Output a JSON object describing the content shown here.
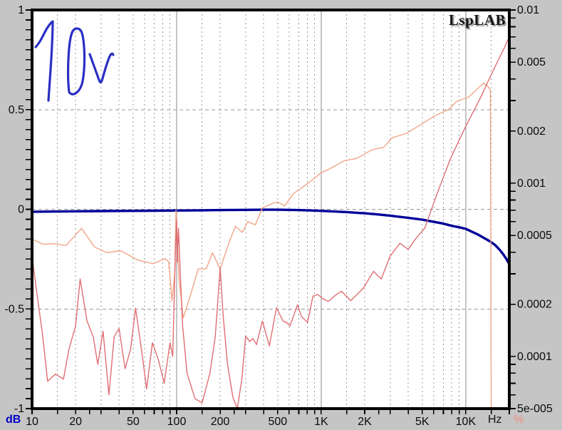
{
  "app": {
    "background_color": "#c5c5c5"
  },
  "chart_data": {
    "type": "line",
    "title": "LspLAB",
    "plot_bg": "#ffffff",
    "border_color": "#000000",
    "grid": {
      "dash_color": "#989898",
      "solid_color": "#8a8a8a",
      "h_values": [
        0.5,
        0,
        -0.5
      ],
      "v_dashed_multipliers": [
        1.5,
        2,
        3,
        4,
        5,
        6,
        7,
        8,
        9
      ],
      "v_solid": [
        100,
        1000,
        10000
      ]
    },
    "x_axis": {
      "scale": "log",
      "min": 10,
      "max": 20000,
      "unit": "Hz",
      "unit_color": "#111111",
      "tick_multipliers": [
        1,
        1.5,
        2,
        2.5,
        3,
        4,
        5,
        6,
        7,
        8,
        9
      ],
      "tick_labels": [
        {
          "f": 10,
          "label": "10"
        },
        {
          "f": 20,
          "label": "20"
        },
        {
          "f": 50,
          "label": "50"
        },
        {
          "f": 100,
          "label": "100"
        },
        {
          "f": 200,
          "label": "200"
        },
        {
          "f": 500,
          "label": "500"
        },
        {
          "f": 1000,
          "label": "1K"
        },
        {
          "f": 2000,
          "label": "2K"
        },
        {
          "f": 5000,
          "label": "5K"
        },
        {
          "f": 10000,
          "label": "10K"
        }
      ]
    },
    "left_axis": {
      "scale": "linear",
      "min": -1,
      "max": 1,
      "minor_step": 0.05,
      "unit": "dB",
      "unit_color": "#0000c8",
      "tick_labels": [
        {
          "v": 1,
          "label": "1"
        },
        {
          "v": 0.5,
          "label": "0.5"
        },
        {
          "v": 0,
          "label": "0"
        },
        {
          "v": -0.5,
          "label": "-0.5"
        },
        {
          "v": -1,
          "label": "-1"
        }
      ]
    },
    "right_axis": {
      "scale": "log",
      "min": 5e-05,
      "max": 0.01,
      "unit": "%",
      "unit_color": "#ee8b7d",
      "tick_labels": [
        {
          "v": 0.01,
          "label": "0.01"
        },
        {
          "v": 0.005,
          "label": "0.005"
        },
        {
          "v": 0.002,
          "label": "0.002"
        },
        {
          "v": 0.001,
          "label": "0.001"
        },
        {
          "v": 0.0005,
          "label": "0.0005"
        },
        {
          "v": 0.0002,
          "label": "0.0002"
        },
        {
          "v": 0.0001,
          "label": "0.0001"
        },
        {
          "v": 5e-05,
          "label": "5e-005"
        }
      ]
    },
    "series": [
      {
        "name": "frequency-response",
        "axis": "left",
        "color": "#000099",
        "width": 3.4,
        "points": [
          [
            10,
            -0.012
          ],
          [
            15,
            -0.011
          ],
          [
            20,
            -0.01
          ],
          [
            30,
            -0.009
          ],
          [
            50,
            -0.008
          ],
          [
            70,
            -0.007
          ],
          [
            100,
            -0.006
          ],
          [
            150,
            -0.005
          ],
          [
            200,
            -0.004
          ],
          [
            300,
            -0.003
          ],
          [
            400,
            -0.002
          ],
          [
            500,
            -0.002
          ],
          [
            700,
            -0.004
          ],
          [
            1000,
            -0.008
          ],
          [
            1500,
            -0.014
          ],
          [
            2000,
            -0.02
          ],
          [
            2500,
            -0.026
          ],
          [
            3000,
            -0.032
          ],
          [
            4000,
            -0.043
          ],
          [
            5000,
            -0.052
          ],
          [
            6000,
            -0.063
          ],
          [
            7000,
            -0.072
          ],
          [
            8000,
            -0.083
          ],
          [
            9000,
            -0.09
          ],
          [
            10000,
            -0.098
          ],
          [
            12000,
            -0.125
          ],
          [
            14000,
            -0.152
          ],
          [
            15000,
            -0.165
          ],
          [
            16000,
            -0.18
          ],
          [
            17000,
            -0.2
          ],
          [
            18000,
            -0.222
          ],
          [
            19000,
            -0.247
          ],
          [
            20000,
            -0.275
          ]
        ]
      },
      {
        "name": "distortion-smooth",
        "axis": "right",
        "color": "#f2a588",
        "width": 1.4,
        "points": [
          [
            10,
            0.000476
          ],
          [
            11.9,
            0.000445
          ],
          [
            14.4,
            0.000448
          ],
          [
            17.2,
            0.000437
          ],
          [
            22,
            0.000549
          ],
          [
            27,
            0.000428
          ],
          [
            33,
            0.000397
          ],
          [
            41,
            0.000408
          ],
          [
            54,
            0.00036
          ],
          [
            69,
            0.000343
          ],
          [
            83,
            0.000367
          ],
          [
            88,
            0.000353
          ],
          [
            93,
            0.00021
          ],
          [
            97,
            0.0003
          ],
          [
            99,
            0.0007
          ],
          [
            104,
            0.00028
          ],
          [
            111,
            0.000167
          ],
          [
            124,
            0.000222
          ],
          [
            141,
            0.00032
          ],
          [
            160,
            0.00032
          ],
          [
            177,
            0.000397
          ],
          [
            200,
            0.00032
          ],
          [
            230,
            0.000453
          ],
          [
            255,
            0.000564
          ],
          [
            285,
            0.00052
          ],
          [
            310,
            0.0006
          ],
          [
            350,
            0.000575
          ],
          [
            392,
            0.00072
          ],
          [
            460,
            0.000765
          ],
          [
            500,
            0.000779
          ],
          [
            560,
            0.00074
          ],
          [
            640,
            0.00087
          ],
          [
            720,
            0.00093
          ],
          [
            810,
            0.001
          ],
          [
            900,
            0.00107
          ],
          [
            1000,
            0.00115
          ],
          [
            1120,
            0.0012
          ],
          [
            1450,
            0.00135
          ],
          [
            1760,
            0.00139
          ],
          [
            2250,
            0.00156
          ],
          [
            2700,
            0.00161
          ],
          [
            3100,
            0.00183
          ],
          [
            3890,
            0.00194
          ],
          [
            4890,
            0.00218
          ],
          [
            6120,
            0.00245
          ],
          [
            7690,
            0.00268
          ],
          [
            8610,
            0.00296
          ],
          [
            10450,
            0.00314
          ],
          [
            13270,
            0.00378
          ],
          [
            14300,
            0.0036
          ],
          [
            14800,
            0.00345
          ],
          [
            15000,
            5e-05
          ]
        ]
      },
      {
        "name": "distortion-jagged",
        "axis": "right",
        "color": "#e06e73",
        "width": 1.4,
        "points": [
          [
            10,
            0.00038
          ],
          [
            10.8,
            0.00023
          ],
          [
            11.8,
            0.000135
          ],
          [
            12.8,
            7.2e-05
          ],
          [
            14.5,
            7.9e-05
          ],
          [
            16.5,
            7.4e-05
          ],
          [
            18,
            0.00011
          ],
          [
            20,
            0.00015
          ],
          [
            21.5,
            0.00028
          ],
          [
            24,
            0.00016
          ],
          [
            26.5,
            0.00013
          ],
          [
            28.5,
            9e-05
          ],
          [
            31,
            0.00014
          ],
          [
            34,
            6e-05
          ],
          [
            37,
            0.00013
          ],
          [
            40,
            0.000145
          ],
          [
            44,
            8.5e-05
          ],
          [
            48,
            0.00011
          ],
          [
            52,
            0.00019
          ],
          [
            58,
            0.0001
          ],
          [
            62,
            6.5e-05
          ],
          [
            68,
            0.00012
          ],
          [
            75,
            9.5e-05
          ],
          [
            82,
            7e-05
          ],
          [
            90,
            0.00012
          ],
          [
            94,
            0.0001
          ],
          [
            98,
            0.0004
          ],
          [
            100,
            0.00062
          ],
          [
            101,
            0.00035
          ],
          [
            103,
            0.00055
          ],
          [
            106,
            0.0003
          ],
          [
            110,
            0.00015
          ],
          [
            118,
            8e-05
          ],
          [
            134,
            5.7e-05
          ],
          [
            150,
            5.4e-05
          ],
          [
            170,
            8e-05
          ],
          [
            185,
            0.00013
          ],
          [
            200,
            0.000326
          ],
          [
            210,
            0.00017
          ],
          [
            225,
            9e-05
          ],
          [
            245,
            5.8e-05
          ],
          [
            263,
            5e-05
          ],
          [
            283,
            7.5e-05
          ],
          [
            300,
            0.000131
          ],
          [
            320,
            0.000122
          ],
          [
            337,
            0.000127
          ],
          [
            357,
            0.000117
          ],
          [
            392,
            0.00016
          ],
          [
            438,
            0.000115
          ],
          [
            490,
            0.000191
          ],
          [
            545,
            0.00016
          ],
          [
            575,
            0.000157
          ],
          [
            608,
            0.00015
          ],
          [
            650,
            0.000175
          ],
          [
            686,
            0.000199
          ],
          [
            730,
            0.00017
          ],
          [
            805,
            0.000157
          ],
          [
            876,
            0.000223
          ],
          [
            946,
            0.000228
          ],
          [
            1030,
            0.000215
          ],
          [
            1120,
            0.000208
          ],
          [
            1250,
            0.000225
          ],
          [
            1380,
            0.000238
          ],
          [
            1600,
            0.00021
          ],
          [
            1950,
            0.000247
          ],
          [
            2300,
            0.00031
          ],
          [
            2600,
            0.00028
          ],
          [
            3000,
            0.00038
          ],
          [
            3500,
            0.00045
          ],
          [
            4000,
            0.000415
          ],
          [
            4500,
            0.000478
          ],
          [
            5200,
            0.00055
          ],
          [
            6300,
            0.00086
          ],
          [
            7900,
            0.00141
          ],
          [
            10000,
            0.00213
          ],
          [
            12600,
            0.0031
          ],
          [
            15800,
            0.00464
          ],
          [
            18700,
            0.00617
          ],
          [
            20000,
            0.007
          ]
        ]
      }
    ],
    "annotation": {
      "text": "10v",
      "color": "#2a2fc4",
      "stroke_width": 3.2,
      "paths": [
        "M50 66 C55 61 59 53 63 45 C66 39 71 32 74 30 C74 46 72 84 70 112 L68 141",
        "M97 129 C94 104 96 59 101 46 C104 38 112 38 115 46 C119 60 120 92 116 114 C113 129 102 137 97 129",
        "M126 76 C130 87 135 101 139 112 C141 117 142 117 144 110 C147 99 151 86 154 79 C156 75 158 74 159 77"
      ]
    }
  }
}
